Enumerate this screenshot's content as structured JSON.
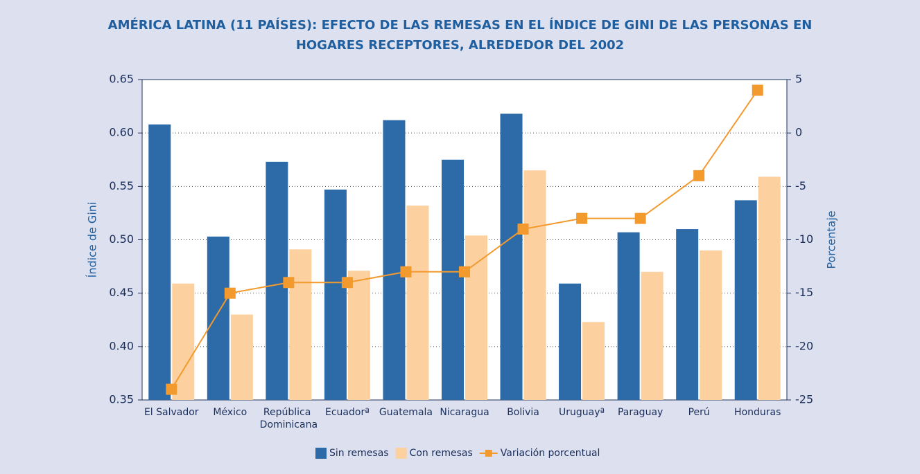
{
  "chart_data": {
    "type": "bar_line",
    "title": "AMÉRICA LATINA (11 PAÍSES): EFECTO DE LAS REMESAS EN EL ÍNDICE DE GINI DE LAS PERSONAS EN HOGARES RECEPTORES, ALREDEDOR DEL 2002",
    "ylabel": "Índice de Gini",
    "y2label": "Porcentaje",
    "categories": [
      "El Salvador",
      "México",
      "República Dominicana",
      "Ecuadorª",
      "Guatemala",
      "Nicaragua",
      "Bolivia",
      "Uruguayª",
      "Paraguay",
      "Perú",
      "Honduras"
    ],
    "series": [
      {
        "name": "Sin remesas",
        "color": "#2c6aa8",
        "type": "bar",
        "values": [
          0.608,
          0.503,
          0.573,
          0.547,
          0.612,
          0.575,
          0.618,
          0.459,
          0.507,
          0.51,
          0.537
        ]
      },
      {
        "name": "Con remesas",
        "color": "#fdd0a0",
        "type": "bar",
        "values": [
          0.459,
          0.43,
          0.491,
          0.471,
          0.532,
          0.504,
          0.565,
          0.423,
          0.47,
          0.49,
          0.559
        ]
      },
      {
        "name": "Variación porcentual",
        "color": "#f39a2e",
        "type": "line",
        "axis": "y2",
        "values": [
          -24,
          -15,
          -14,
          -14,
          -13,
          -13,
          -9,
          -8,
          -8,
          -4,
          4
        ]
      }
    ],
    "ylim": [
      0.35,
      0.65
    ],
    "yticks": [
      0.35,
      {
        "value": 0.4,
        "label": "0.40"
      },
      0.45,
      {
        "value": 0.5,
        "label": "0.50"
      },
      0.55,
      {
        "value": 0.6,
        "label": "0.60"
      },
      0.65
    ],
    "y2lim": [
      -25,
      5
    ],
    "y2ticks": [
      -25,
      -20,
      -15,
      -10,
      -5,
      0,
      5
    ],
    "grid": true,
    "legend": "bottom"
  }
}
